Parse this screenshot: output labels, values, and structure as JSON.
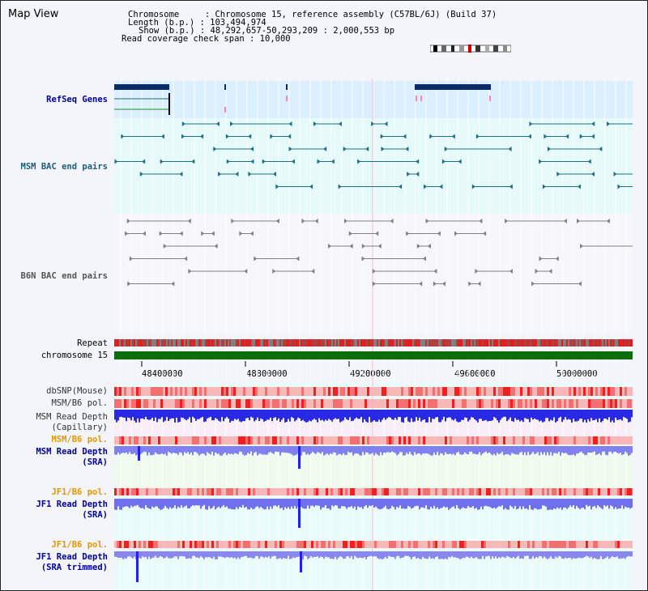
{
  "app": {
    "title": "Map View"
  },
  "header": {
    "line1": "Chromosome     : Chromosome 15, reference assembly (C57BL/6J) (Build 37)",
    "line2": "Length (b.p.) : 103,494,974",
    "line3": "Show (b.p.) : 48,292,657-50,293,209 : 2,000,553 bp",
    "line4": "Read coverage check span : 10,000"
  },
  "tracks": {
    "refseq": "RefSeq Genes",
    "msm_bac": "MSM BAC end pairs",
    "b6n_bac": "B6N BAC end pairs",
    "repeat": "Repeat",
    "chromosome": "chromosome 15",
    "dbsnp": "dbSNP(Mouse)",
    "msm_b6_pol_1": "MSM/B6 pol.",
    "msm_depth_cap_1": "MSM Read Depth",
    "msm_depth_cap_2": "(Capillary)",
    "msm_b6_pol_2": "MSM/B6 pol.",
    "msm_depth_sra_1": "MSM Read Depth",
    "msm_depth_sra_2": "(SRA)",
    "jf1_b6_pol_1": "JF1/B6 pol.",
    "jf1_depth_sra_1": "JF1 Read Depth",
    "jf1_depth_sra_2": "(SRA)",
    "jf1_b6_pol_2": "JF1/B6 pol.",
    "jf1_depth_trim_1": "JF1 Read Depth",
    "jf1_depth_trim_2": "(SRA trimmed)"
  },
  "axis": {
    "ticks": [
      "48400000",
      "48800000",
      "49200000",
      "49600000",
      "50000000"
    ]
  },
  "colors": {
    "refseq_dark": "#0a2a6a",
    "refseq_bg": "#dcefff",
    "msm_bac": "#1e6e86",
    "bac_gray": "#808080",
    "chrom_green": "#0b6e0b",
    "depth_blue": "#3030e0",
    "pol_red": "#f03030",
    "label_blue": "#000099",
    "label_orange": "#dd9900",
    "label_teal": "#1a5f7a"
  }
}
